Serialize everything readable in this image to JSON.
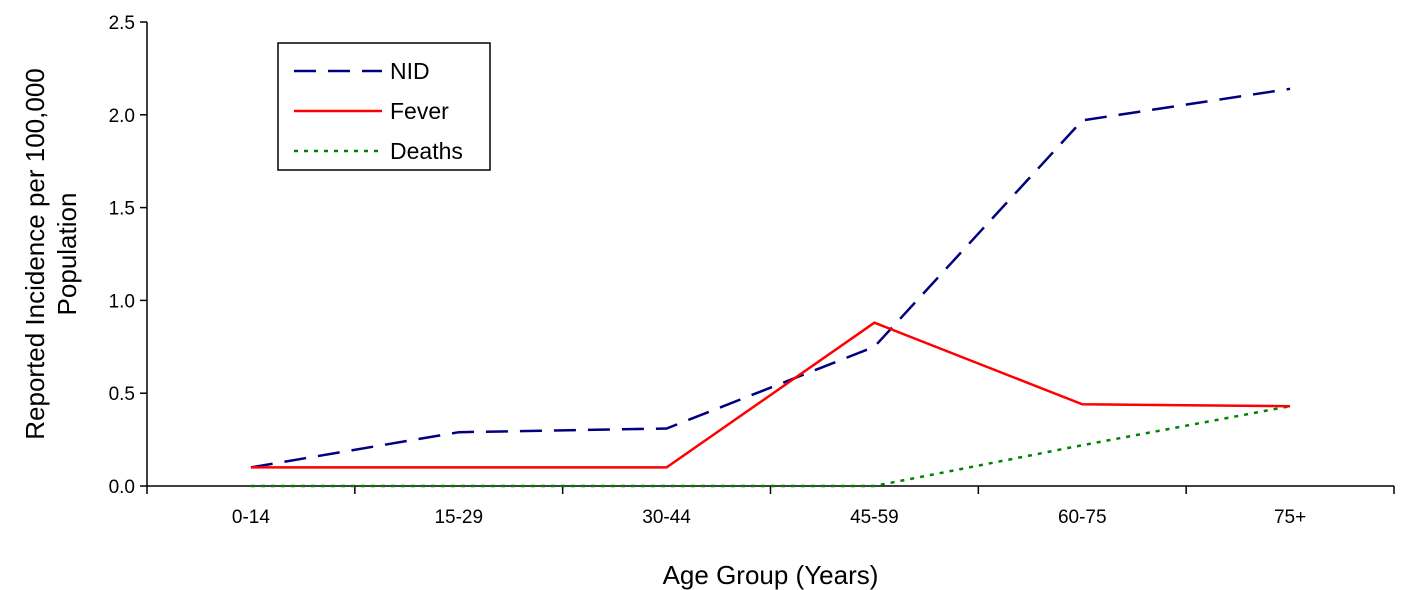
{
  "chart_data": {
    "type": "line",
    "title": "",
    "xlabel": "Age Group (Years)",
    "ylabel_line1": "Reported Incidence per 100,000",
    "ylabel_line2": "Population",
    "categories": [
      "0-14",
      "15-29",
      "30-44",
      "45-59",
      "60-75",
      "75+"
    ],
    "ylim": [
      0,
      2.5
    ],
    "yticks": [
      "0.0",
      "0.5",
      "1.0",
      "1.5",
      "2.0",
      "2.5"
    ],
    "grid": false,
    "legend_position": "top-left",
    "series": [
      {
        "name": "NID",
        "values": [
          0.1,
          0.29,
          0.31,
          0.75,
          1.97,
          2.14
        ],
        "color": "#000080",
        "style": "dashed"
      },
      {
        "name": "Fever",
        "values": [
          0.1,
          0.1,
          0.1,
          0.88,
          0.44,
          0.43
        ],
        "color": "#ff0000",
        "style": "solid"
      },
      {
        "name": "Deaths",
        "values": [
          0.0,
          0.0,
          0.0,
          0.0,
          0.22,
          0.43
        ],
        "color": "#008000",
        "style": "dotted"
      }
    ]
  }
}
